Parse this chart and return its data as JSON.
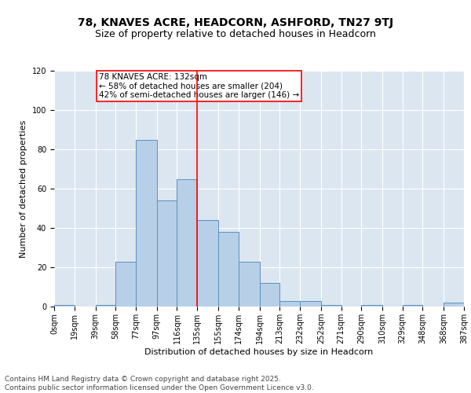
{
  "title": "78, KNAVES ACRE, HEADCORN, ASHFORD, TN27 9TJ",
  "subtitle": "Size of property relative to detached houses in Headcorn",
  "xlabel": "Distribution of detached houses by size in Headcorn",
  "ylabel": "Number of detached properties",
  "bar_color": "#b8cfe8",
  "bar_edge_color": "#5a8fc0",
  "background_color": "#dce6f0",
  "bins": [
    0,
    19,
    39,
    58,
    77,
    97,
    116,
    135,
    155,
    174,
    194,
    213,
    232,
    252,
    271,
    290,
    310,
    329,
    348,
    368,
    387
  ],
  "bin_labels": [
    "0sqm",
    "19sqm",
    "39sqm",
    "58sqm",
    "77sqm",
    "97sqm",
    "116sqm",
    "135sqm",
    "155sqm",
    "174sqm",
    "194sqm",
    "213sqm",
    "232sqm",
    "252sqm",
    "271sqm",
    "290sqm",
    "310sqm",
    "329sqm",
    "348sqm",
    "368sqm",
    "387sqm"
  ],
  "counts": [
    1,
    0,
    1,
    23,
    85,
    54,
    65,
    44,
    38,
    23,
    12,
    3,
    3,
    1,
    0,
    1,
    0,
    1,
    0,
    2
  ],
  "property_line_x": 135,
  "annotation_text": "78 KNAVES ACRE: 132sqm\n← 58% of detached houses are smaller (204)\n42% of semi-detached houses are larger (146) →",
  "annotation_box_color": "white",
  "annotation_box_edge_color": "red",
  "vline_color": "red",
  "ylim": [
    0,
    120
  ],
  "yticks": [
    0,
    20,
    40,
    60,
    80,
    100,
    120
  ],
  "footer_text": "Contains HM Land Registry data © Crown copyright and database right 2025.\nContains public sector information licensed under the Open Government Licence v3.0.",
  "title_fontsize": 10,
  "subtitle_fontsize": 9,
  "axis_label_fontsize": 8,
  "tick_fontsize": 7,
  "annotation_fontsize": 7.5,
  "footer_fontsize": 6.5
}
